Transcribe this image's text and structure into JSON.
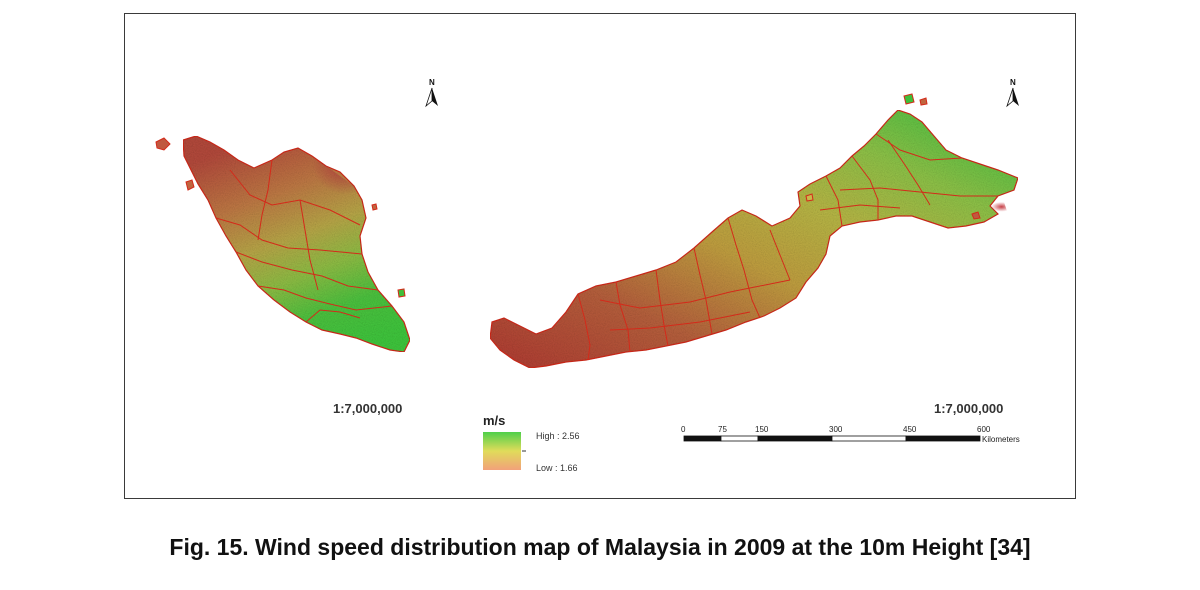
{
  "map": {
    "left_scale": "1:7,000,000",
    "right_scale": "1:7,000,000",
    "north_label": "N"
  },
  "legend": {
    "title": "m/s",
    "high_label": "High : 2.56",
    "low_label": "Low : 1.66",
    "high_color": "#4fcf4a",
    "mid_color": "#e0dc5a",
    "low_color": "#f2a17a"
  },
  "scale_bar": {
    "ticks": [
      "0",
      "75",
      "150",
      "300",
      "450",
      "600"
    ],
    "unit": "Kilometers"
  },
  "colors": {
    "boundary": "#d42a1a",
    "high_green": "#3fbf3a",
    "mid_yellow": "#c9b84a",
    "low_red": "#b5453a"
  },
  "caption": "Fig. 15. Wind speed distribution map of Malaysia in 2009 at the 10m Height [34]"
}
